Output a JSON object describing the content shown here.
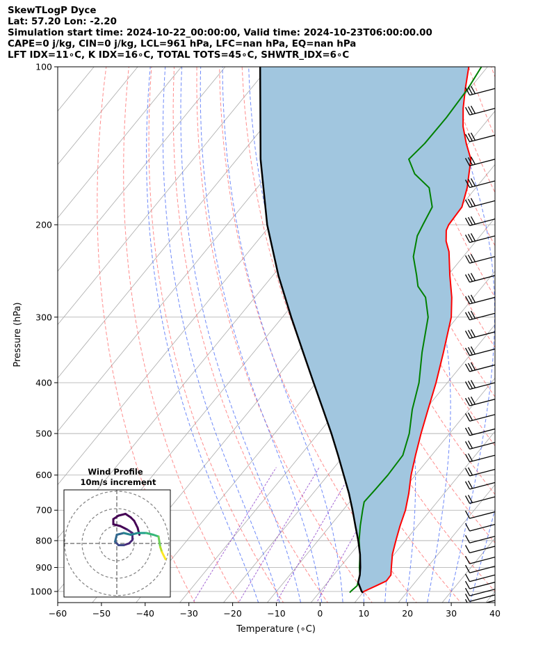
{
  "header": {
    "line1": "SkewTLogP Dyce",
    "line2": "Lat: 57.20   Lon: -2.20",
    "line3": "Simulation start time: 2024-10-22_00:00:00, Valid time: 2024-10-23T06:00:00.00",
    "line4": "CAPE=0 j/kg, CIN=0 j/kg, LCL=961 hPa, LFC=nan hPa, EQ=nan hPa",
    "line5": "LFT IDX=11∘C, K IDX=16∘C, TOTAL TOTS=45∘C, SHWTR_IDX=6∘C"
  },
  "colors": {
    "temperature": "#ff0000",
    "dewpoint": "#008000",
    "parcel": "#000000",
    "cape_fill": "#a1c6df",
    "dry_adiabat": "#ff6f6f",
    "moist_adiabat": "#4a6cf7",
    "mixing_ratio": "#8b3fc8",
    "isotherm": "#aaaaaa"
  },
  "chart_data": [
    {
      "type": "line",
      "subtype": "skew-t log-p diagram",
      "xlabel": "Temperature (∘C)",
      "ylabel": "Pressure (hPa)",
      "xlim": [
        -60,
        40
      ],
      "ylim": [
        1050,
        100
      ],
      "y_scale": "log",
      "grid": true,
      "x_ticks": [
        "−60",
        "−50",
        "−40",
        "−30",
        "−20",
        "−10",
        "0",
        "10",
        "20",
        "30",
        "40"
      ],
      "y_ticks": [
        "100",
        "200",
        "300",
        "400",
        "500",
        "600",
        "700",
        "800",
        "900",
        "1000"
      ],
      "series": [
        {
          "name": "temperature",
          "points": [
            [
              1005,
              10
            ],
            [
              1000,
              10
            ],
            [
              975,
              11.8
            ],
            [
              955,
              13.2
            ],
            [
              930,
              13.1
            ],
            [
              900,
              11.8
            ],
            [
              850,
              9.6
            ],
            [
              800,
              7.8
            ],
            [
              750,
              6.0
            ],
            [
              700,
              4.3
            ],
            [
              650,
              1.9
            ],
            [
              600,
              -1.0
            ],
            [
              550,
              -3.7
            ],
            [
              500,
              -6.5
            ],
            [
              450,
              -9.4
            ],
            [
              400,
              -12.6
            ],
            [
              350,
              -16.6
            ],
            [
              300,
              -21.4
            ],
            [
              275,
              -25.0
            ],
            [
              250,
              -29.5
            ],
            [
              225,
              -34.2
            ],
            [
              215,
              -36.8
            ],
            [
              205,
              -38.8
            ],
            [
              200,
              -39.3
            ],
            [
              185,
              -39.6
            ],
            [
              170,
              -42.0
            ],
            [
              150,
              -46.5
            ],
            [
              140,
              -50.5
            ],
            [
              130,
              -54.4
            ],
            [
              120,
              -57.8
            ],
            [
              110,
              -61.0
            ],
            [
              105,
              -62.6
            ],
            [
              100,
              -64.3
            ]
          ]
        },
        {
          "name": "dewpoint",
          "points": [
            [
              1005,
              7
            ],
            [
              1000,
              7
            ],
            [
              975,
              7.4
            ],
            [
              930,
              6.0
            ],
            [
              900,
              4.5
            ],
            [
              850,
              2.2
            ],
            [
              800,
              -0.6
            ],
            [
              750,
              -3.1
            ],
            [
              700,
              -5.5
            ],
            [
              675,
              -6.7
            ],
            [
              640,
              -6.5
            ],
            [
              600,
              -6.3
            ],
            [
              550,
              -6.6
            ],
            [
              500,
              -9.2
            ],
            [
              450,
              -13.0
            ],
            [
              400,
              -16.5
            ],
            [
              350,
              -21.5
            ],
            [
              300,
              -26.7
            ],
            [
              275,
              -31.0
            ],
            [
              262,
              -34.8
            ],
            [
              250,
              -37.1
            ],
            [
              230,
              -41.4
            ],
            [
              210,
              -44.4
            ],
            [
              200,
              -45.2
            ],
            [
              185,
              -46.4
            ],
            [
              170,
              -50.7
            ],
            [
              160,
              -56.6
            ],
            [
              150,
              -60.7
            ],
            [
              140,
              -60.0
            ],
            [
              125,
              -59.9
            ],
            [
              110,
              -60.4
            ],
            [
              100,
              -61.4
            ]
          ]
        },
        {
          "name": "parcel",
          "points": [
            [
              1005,
              10
            ],
            [
              1000,
              9.5
            ],
            [
              961,
              7.0
            ],
            [
              930,
              6.0
            ],
            [
              900,
              4.7
            ],
            [
              850,
              2.2
            ],
            [
              800,
              -0.8
            ],
            [
              750,
              -4.2
            ],
            [
              700,
              -7.8
            ],
            [
              650,
              -11.8
            ],
            [
              600,
              -16.4
            ],
            [
              550,
              -21.4
            ],
            [
              500,
              -27.0
            ],
            [
              450,
              -33.4
            ],
            [
              400,
              -40.6
            ],
            [
              350,
              -48.7
            ],
            [
              300,
              -58.0
            ],
            [
              250,
              -68.7
            ],
            [
              200,
              -80.8
            ],
            [
              150,
              -94.6
            ],
            [
              100,
              -112.0
            ]
          ]
        }
      ]
    },
    {
      "type": "scatter",
      "subtype": "wind hodograph",
      "title": "Wind Profile",
      "subtitle": "10m/s increment",
      "ring_step": 10,
      "points": [
        [
          13,
          5
        ],
        [
          12,
          9
        ],
        [
          10,
          13
        ],
        [
          8,
          15
        ],
        [
          5,
          17
        ],
        [
          1,
          16
        ],
        [
          -2,
          14
        ],
        [
          -2,
          11
        ],
        [
          2,
          10
        ],
        [
          6,
          8
        ],
        [
          9,
          6
        ],
        [
          9,
          2
        ],
        [
          7,
          0
        ],
        [
          4,
          -1
        ],
        [
          1,
          -1
        ],
        [
          -1,
          1
        ],
        [
          0,
          5
        ],
        [
          4,
          6
        ],
        [
          8,
          5
        ],
        [
          12,
          6
        ],
        [
          17,
          6
        ],
        [
          21,
          5
        ],
        [
          24,
          4
        ],
        [
          25,
          -2
        ],
        [
          26,
          -5
        ],
        [
          27,
          -7
        ],
        [
          28,
          -9
        ]
      ]
    }
  ]
}
